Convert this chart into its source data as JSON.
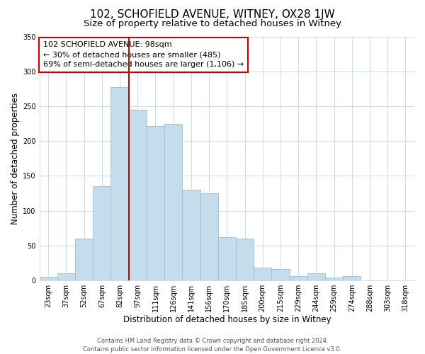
{
  "title": "102, SCHOFIELD AVENUE, WITNEY, OX28 1JW",
  "subtitle": "Size of property relative to detached houses in Witney",
  "xlabel": "Distribution of detached houses by size in Witney",
  "ylabel": "Number of detached properties",
  "bar_labels": [
    "23sqm",
    "37sqm",
    "52sqm",
    "67sqm",
    "82sqm",
    "97sqm",
    "111sqm",
    "126sqm",
    "141sqm",
    "156sqm",
    "170sqm",
    "185sqm",
    "200sqm",
    "215sqm",
    "229sqm",
    "244sqm",
    "259sqm",
    "274sqm",
    "288sqm",
    "303sqm",
    "318sqm"
  ],
  "bar_values": [
    5,
    10,
    60,
    135,
    277,
    245,
    222,
    225,
    130,
    125,
    62,
    60,
    18,
    16,
    6,
    10,
    4,
    6,
    0,
    0,
    0
  ],
  "bar_color": "#c5dced",
  "bar_edge_color": "#9bbfd6",
  "vline_index": 5,
  "vline_color": "#cc0000",
  "annotation_text": "102 SCHOFIELD AVENUE: 98sqm\n← 30% of detached houses are smaller (485)\n69% of semi-detached houses are larger (1,106) →",
  "annotation_box_color": "#ffffff",
  "annotation_box_edge": "#cc0000",
  "ylim": [
    0,
    350
  ],
  "yticks": [
    0,
    50,
    100,
    150,
    200,
    250,
    300,
    350
  ],
  "footer_line1": "Contains HM Land Registry data © Crown copyright and database right 2024.",
  "footer_line2": "Contains public sector information licensed under the Open Government Licence v3.0.",
  "title_fontsize": 11,
  "subtitle_fontsize": 9.5,
  "xlabel_fontsize": 8.5,
  "ylabel_fontsize": 8.5,
  "tick_fontsize": 7,
  "annot_fontsize": 8,
  "footer_fontsize": 6,
  "background_color": "#ffffff",
  "grid_color": "#ccdde8"
}
